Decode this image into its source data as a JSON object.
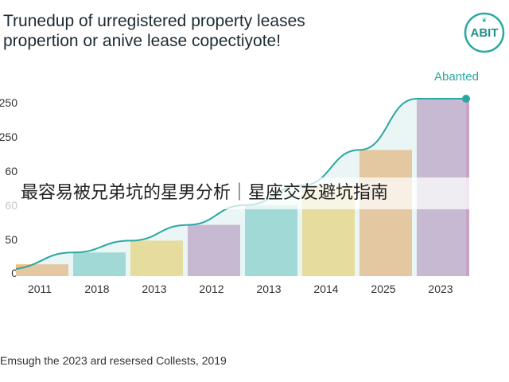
{
  "header": {
    "title_lines": [
      "Trunedup of urregistered property leases",
      "propertion or anive lease copectiyote!"
    ],
    "logo_text": "ABIT"
  },
  "chart_data": {
    "type": "bar",
    "categories": [
      "2011",
      "2018",
      "2013",
      "2012",
      "2013",
      "2014",
      "2025",
      "2023"
    ],
    "values": [
      3,
      6,
      9,
      13,
      18,
      23,
      32,
      45
    ],
    "bar_colors": [
      "#f7b97f",
      "#8fd3cf",
      "#fad878",
      "#c9a2c8",
      "#8fd3cf",
      "#fad878",
      "#f7b97f",
      "#c9a2c8"
    ],
    "y_tick_labels": [
      "0",
      "50",
      "60",
      "60",
      "250",
      "250"
    ],
    "trend_line": {
      "color": "#2ba7a1",
      "end_label": "Abanted"
    },
    "grid": false,
    "title": "",
    "xlabel": "",
    "ylabel": ""
  },
  "footer": {
    "caption": "Emsugh the 2023 ard resersed Collests, 2019"
  },
  "overlay": {
    "text": "最容易被兄弟坑的星男分析｜星座交友避坑指南"
  }
}
